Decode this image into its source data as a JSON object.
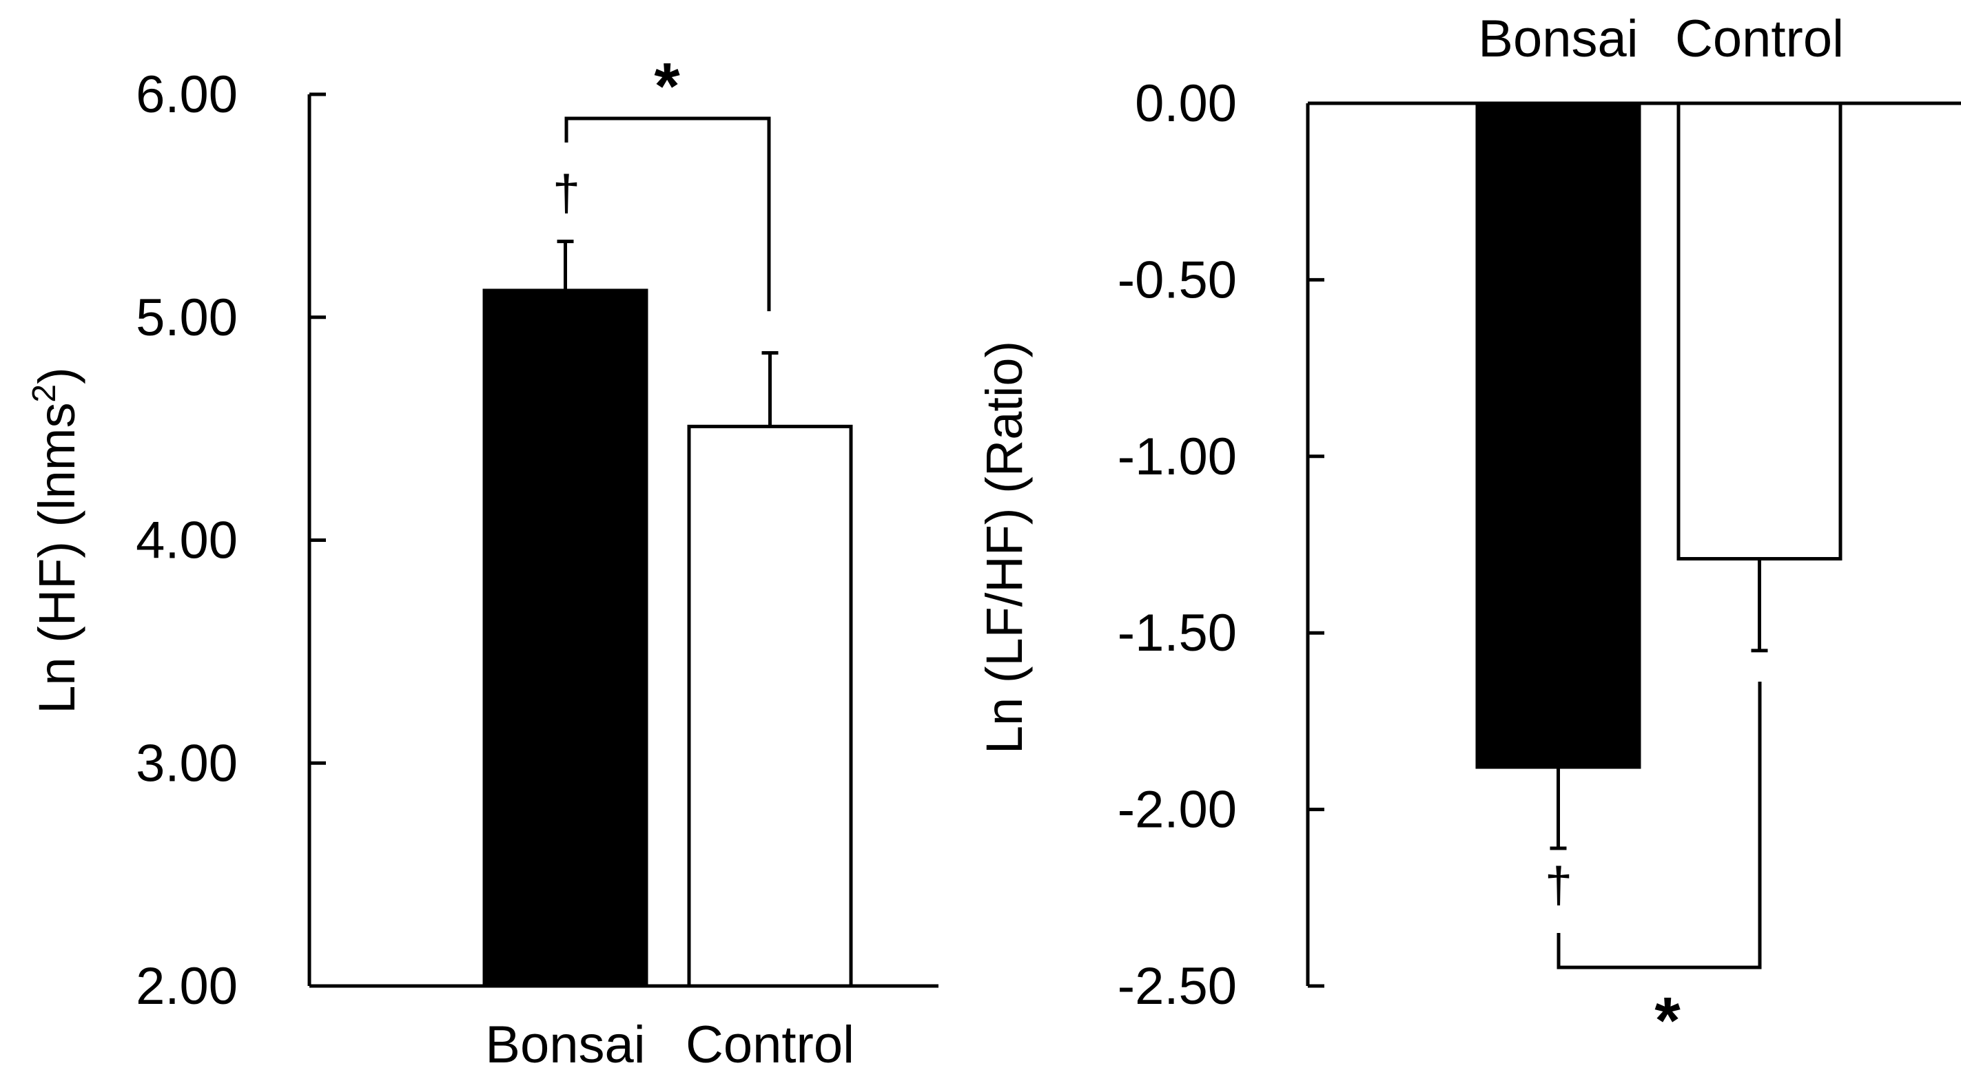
{
  "chart_data": [
    {
      "type": "bar",
      "title": "",
      "ylabel_main": "Ln (HF) (lnms",
      "ylabel_sup": "2",
      "ylabel_tail": ")",
      "xlabel": "",
      "ylim": [
        2.0,
        6.0
      ],
      "yticks": [
        2.0,
        3.0,
        4.0,
        5.0,
        6.0
      ],
      "ytick_labels": [
        "2.00",
        "3.00",
        "4.00",
        "5.00",
        "6.00"
      ],
      "categories": [
        "Bonsai",
        "Control"
      ],
      "values": [
        5.12,
        4.51
      ],
      "errors": [
        0.22,
        0.33
      ],
      "fills": [
        "#000000",
        "#ffffff"
      ],
      "category_label_position": "bottom",
      "annotations": {
        "dagger": "†",
        "significance": "*"
      }
    },
    {
      "type": "bar",
      "title": "",
      "ylabel": "Ln (LF/HF) (Ratio)",
      "xlabel": "",
      "ylim": [
        -2.5,
        0.0
      ],
      "yticks": [
        -2.5,
        -2.0,
        -1.5,
        -1.0,
        -0.5,
        0.0
      ],
      "ytick_labels": [
        "-2.50",
        "-2.00",
        "-1.50",
        "-1.00",
        "-0.50",
        "0.00"
      ],
      "categories": [
        "Bonsai",
        "Control"
      ],
      "values": [
        -1.88,
        -1.29
      ],
      "errors": [
        0.23,
        0.26
      ],
      "fills": [
        "#000000",
        "#ffffff"
      ],
      "category_label_position": "top",
      "annotations": {
        "dagger": "†",
        "significance": "*"
      }
    }
  ]
}
